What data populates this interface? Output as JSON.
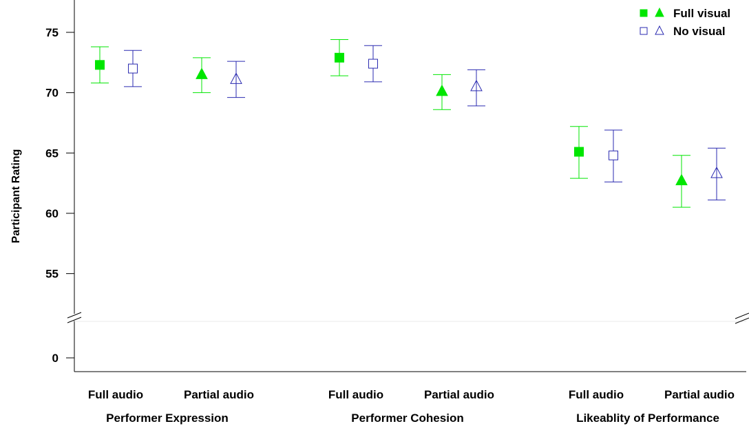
{
  "chart_data": {
    "type": "scatter",
    "ylabel": "Participant Rating",
    "yticks": [
      0,
      55,
      60,
      65,
      70,
      75
    ],
    "ylim_upper": [
      51,
      76
    ],
    "axis_break": true,
    "grid": false,
    "legend_position": "top-right",
    "legend": [
      {
        "label": "Full visual",
        "markers": [
          "filled-square",
          "filled-triangle"
        ],
        "color": "#00e600"
      },
      {
        "label": "No visual",
        "markers": [
          "open-square",
          "open-triangle"
        ],
        "color": "#2a2ab0"
      }
    ],
    "groups": [
      {
        "label": "Performer Expression",
        "conditions": [
          {
            "label": "Full audio",
            "marker": "square",
            "points": [
              {
                "visual": "Full visual",
                "mean": 72.3,
                "low": 70.8,
                "high": 73.8
              },
              {
                "visual": "No visual",
                "mean": 72.0,
                "low": 70.5,
                "high": 73.5
              }
            ]
          },
          {
            "label": "Partial audio",
            "marker": "triangle",
            "points": [
              {
                "visual": "Full visual",
                "mean": 71.5,
                "low": 70.0,
                "high": 72.9
              },
              {
                "visual": "No visual",
                "mean": 71.1,
                "low": 69.6,
                "high": 72.6
              }
            ]
          }
        ]
      },
      {
        "label": "Performer Cohesion",
        "conditions": [
          {
            "label": "Full audio",
            "marker": "square",
            "points": [
              {
                "visual": "Full visual",
                "mean": 72.9,
                "low": 71.4,
                "high": 74.4
              },
              {
                "visual": "No visual",
                "mean": 72.4,
                "low": 70.9,
                "high": 73.9
              }
            ]
          },
          {
            "label": "Partial audio",
            "marker": "triangle",
            "points": [
              {
                "visual": "Full visual",
                "mean": 70.1,
                "low": 68.6,
                "high": 71.5
              },
              {
                "visual": "No visual",
                "mean": 70.5,
                "low": 68.9,
                "high": 71.9
              }
            ]
          }
        ]
      },
      {
        "label": "Likeablity of Performance",
        "conditions": [
          {
            "label": "Full audio",
            "marker": "square",
            "points": [
              {
                "visual": "Full visual",
                "mean": 65.1,
                "low": 62.9,
                "high": 67.2
              },
              {
                "visual": "No visual",
                "mean": 64.8,
                "low": 62.6,
                "high": 66.9
              }
            ]
          },
          {
            "label": "Partial audio",
            "marker": "triangle",
            "points": [
              {
                "visual": "Full visual",
                "mean": 62.7,
                "low": 60.5,
                "high": 64.8
              },
              {
                "visual": "No visual",
                "mean": 63.3,
                "low": 61.1,
                "high": 65.4
              }
            ]
          }
        ]
      }
    ]
  }
}
